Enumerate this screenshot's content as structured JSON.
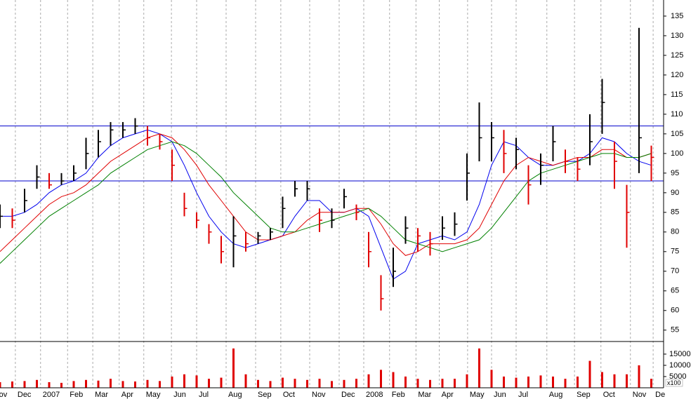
{
  "chart_data": {
    "type": "stock",
    "x": [
      0,
      2,
      4,
      6,
      8,
      10,
      12,
      14,
      16,
      18,
      20,
      22,
      24,
      26,
      28,
      30,
      32,
      34,
      36,
      38,
      40,
      42,
      44,
      46,
      48,
      50,
      52,
      54,
      56,
      58,
      60,
      62,
      64,
      66,
      68,
      70,
      72,
      74,
      76,
      78,
      80,
      82,
      84,
      86,
      88,
      90,
      92,
      94,
      96,
      98,
      100,
      102,
      104,
      106
    ],
    "xlim": [
      0,
      108
    ],
    "xticks": [
      {
        "value": -0.5,
        "label": "ov"
      },
      {
        "value": 2.5,
        "label": "Dec"
      },
      {
        "value": 6.6,
        "label": "2007"
      },
      {
        "value": 11,
        "label": "Feb"
      },
      {
        "value": 15.1,
        "label": "Mar"
      },
      {
        "value": 19.4,
        "label": "Apr"
      },
      {
        "value": 23.4,
        "label": "May"
      },
      {
        "value": 27.9,
        "label": "Jun"
      },
      {
        "value": 32,
        "label": "Jul"
      },
      {
        "value": 36.8,
        "label": "Aug"
      },
      {
        "value": 41.6,
        "label": "Sep"
      },
      {
        "value": 45.7,
        "label": "Oct"
      },
      {
        "value": 50.4,
        "label": "Nov"
      },
      {
        "value": 55.2,
        "label": "Dec"
      },
      {
        "value": 59.2,
        "label": "2008"
      },
      {
        "value": 63.4,
        "label": "Feb"
      },
      {
        "value": 67.7,
        "label": "Mar"
      },
      {
        "value": 71.5,
        "label": "Apr"
      },
      {
        "value": 76.1,
        "label": "May"
      },
      {
        "value": 80,
        "label": "Jun"
      },
      {
        "value": 84,
        "label": "Jul"
      },
      {
        "value": 89,
        "label": "Aug"
      },
      {
        "value": 93.5,
        "label": "Sep"
      },
      {
        "value": 97.8,
        "label": "Oct"
      },
      {
        "value": 102.6,
        "label": "Nov"
      },
      {
        "value": 106.3,
        "label": "De"
      }
    ],
    "ylim": [
      52.1,
      139.1
    ],
    "yticks": [
      55,
      60,
      65,
      70,
      75,
      80,
      85,
      90,
      95,
      100,
      105,
      110,
      115,
      120,
      125,
      130,
      135
    ],
    "grid": true,
    "hlines": [
      107,
      93
    ],
    "hline_color": "#0000cc",
    "price": {
      "high": [
        87,
        86,
        91,
        97,
        95,
        95,
        97,
        104,
        106,
        108,
        108,
        109,
        107,
        105,
        101,
        90,
        85,
        82,
        79,
        84,
        80,
        80,
        81,
        89,
        93,
        93,
        86,
        86,
        91,
        87,
        80,
        69,
        76,
        84,
        81,
        80,
        84,
        85,
        100,
        113,
        108,
        106,
        104,
        97,
        100,
        107,
        101,
        99,
        110,
        119,
        103,
        92,
        132,
        102
      ],
      "low": [
        81,
        81,
        85,
        91,
        91,
        92,
        93,
        96,
        99,
        102,
        104,
        105,
        102,
        101,
        93,
        84,
        81,
        77,
        72,
        71,
        75,
        77,
        78,
        81,
        89,
        88,
        80,
        81,
        86,
        83,
        71,
        60,
        66,
        77,
        75,
        74,
        78,
        79,
        88,
        98,
        98,
        95,
        96,
        87,
        92,
        98,
        95,
        93,
        97,
        105,
        91,
        76,
        95,
        93
      ],
      "close": [
        84,
        83,
        88,
        94,
        92,
        93,
        95,
        100,
        103,
        106,
        106,
        107,
        104,
        103,
        97,
        86,
        83,
        80,
        75,
        79,
        77,
        79,
        80,
        86,
        91,
        91,
        83,
        83,
        89,
        85,
        75,
        63,
        70,
        81,
        79,
        77,
        81,
        82,
        95,
        104,
        104,
        100,
        101,
        92,
        97,
        103,
        98,
        96,
        103,
        113,
        98,
        85,
        104,
        99
      ],
      "up_color": "#000000",
      "down_color": "#e00000"
    },
    "moving_averages": [
      {
        "color": "#0000ee",
        "values": [
          84,
          84,
          85,
          87,
          90,
          92,
          93,
          95,
          99,
          102,
          104,
          105,
          106,
          105,
          103,
          97,
          90,
          84,
          80,
          77,
          76,
          77,
          78,
          79,
          84,
          88,
          88,
          85,
          85,
          86,
          84,
          76,
          68,
          70,
          77,
          78,
          79,
          78,
          80,
          87,
          97,
          103,
          102,
          99,
          97,
          97,
          98,
          98,
          100,
          104,
          103,
          100,
          98,
          97
        ]
      },
      {
        "color": "#e00000",
        "values": [
          75,
          78,
          81,
          84,
          87,
          89,
          90,
          92,
          95,
          98,
          100,
          102,
          104,
          105,
          104,
          101,
          97,
          92,
          88,
          84,
          80,
          78,
          78,
          79,
          80,
          83,
          85,
          85,
          85,
          86,
          86,
          82,
          77,
          74,
          75,
          77,
          77,
          77,
          78,
          81,
          87,
          93,
          97,
          99,
          98,
          97,
          98,
          99,
          99,
          101,
          101,
          99,
          99,
          100
        ]
      },
      {
        "color": "#008000",
        "values": [
          72,
          75,
          78,
          81,
          84,
          86,
          88,
          90,
          92,
          95,
          97,
          99,
          101,
          102,
          103,
          102,
          100,
          97,
          94,
          90,
          87,
          84,
          81,
          80,
          80,
          81,
          82,
          83,
          84,
          85,
          86,
          84,
          81,
          78,
          77,
          76,
          75,
          76,
          77,
          78,
          81,
          85,
          89,
          93,
          95,
          96,
          97,
          98,
          99,
          100,
          100,
          99,
          99,
          100
        ]
      }
    ],
    "volume": {
      "color": "#e00000",
      "values": [
        2500,
        2800,
        3000,
        3500,
        2500,
        2200,
        3000,
        3500,
        3200,
        4000,
        3000,
        2800,
        3500,
        3000,
        5000,
        6000,
        5500,
        4000,
        4500,
        17500,
        6000,
        3500,
        3000,
        4500,
        4000,
        3500,
        4000,
        3000,
        3500,
        4000,
        6000,
        8000,
        7000,
        5000,
        4000,
        3500,
        4000,
        4000,
        6000,
        17500,
        8000,
        5000,
        4500,
        5000,
        5500,
        5000,
        4000,
        5000,
        12000,
        7000,
        6000,
        6000,
        10000,
        4000
      ],
      "ylim": [
        0,
        20300
      ],
      "yticks": [
        5000,
        10000,
        15000
      ],
      "unit_label": "x100"
    }
  }
}
